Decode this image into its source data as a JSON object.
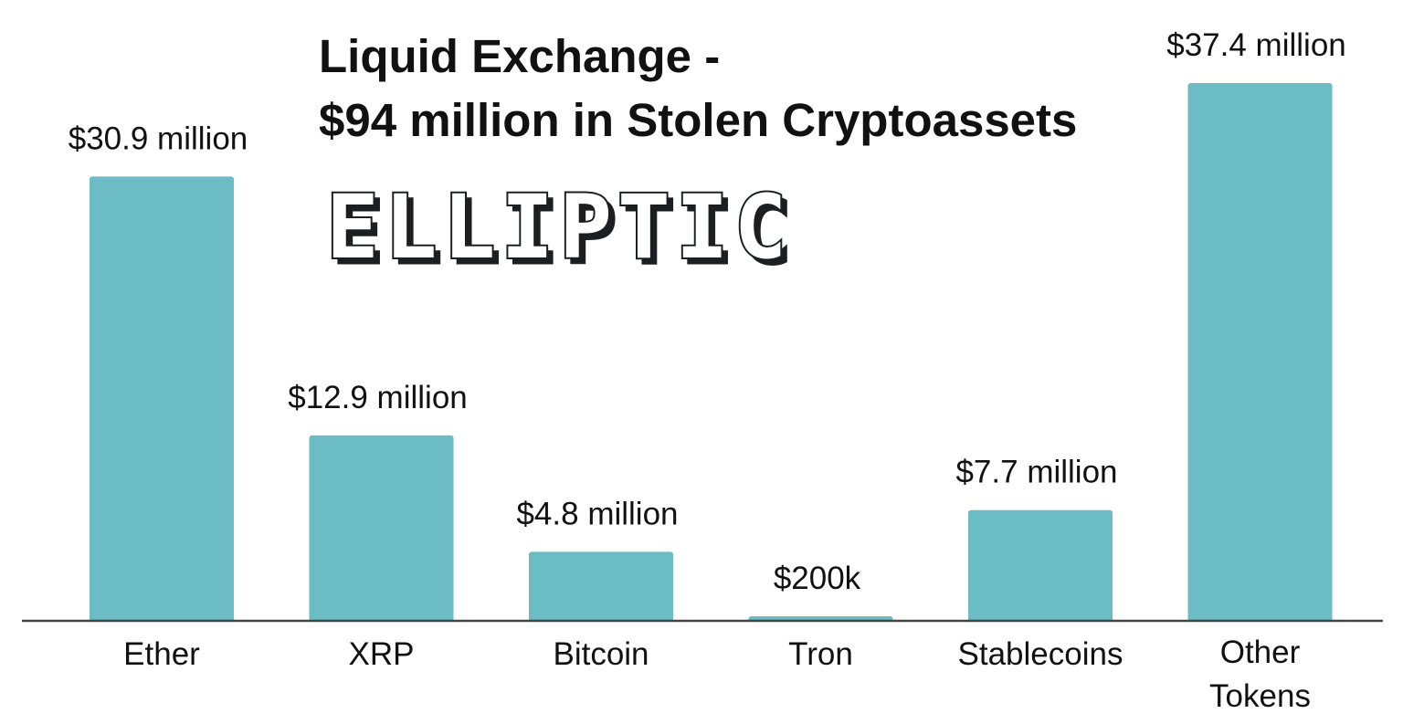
{
  "logo": {
    "text": "ELLIPTIC",
    "colors": {
      "face": "#ffffff",
      "outline": "#1b1f22",
      "shadow": "#1b1f22"
    }
  },
  "colors": {
    "bar": "#6bbcc4",
    "axis": "#444444",
    "text": "#111111"
  },
  "chart_data": {
    "type": "bar",
    "title": "Liquid Exchange - $94 million in Stolen Cryptoassets",
    "title_lines": [
      "Liquid Exchange -",
      "$94 million in Stolen Cryptoassets"
    ],
    "xlabel": "",
    "ylabel": "",
    "ylim": [
      0,
      37.4
    ],
    "unit": "million USD",
    "grid": false,
    "legend": "none",
    "categories": [
      "Ether",
      "XRP",
      "Bitcoin",
      "Tron",
      "Stablecoins",
      "Other Tokens"
    ],
    "category_lines": [
      [
        "Ether"
      ],
      [
        "XRP"
      ],
      [
        "Bitcoin"
      ],
      [
        "Tron"
      ],
      [
        "Stablecoins"
      ],
      [
        "Other",
        "Tokens"
      ]
    ],
    "values": [
      30.9,
      12.9,
      4.8,
      0.2,
      7.7,
      37.4
    ],
    "value_labels": [
      "$30.9 million",
      "$12.9 million",
      "$4.8 million",
      "$200k",
      "$7.7 million",
      "$37.4 million"
    ]
  }
}
